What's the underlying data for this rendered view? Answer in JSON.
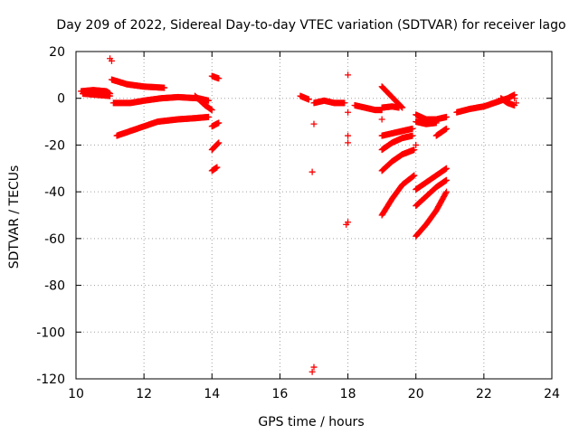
{
  "chart_data": {
    "type": "scatter",
    "title": "Day 209 of 2022, Sidereal Day-to-day VTEC variation (SDTVAR) for receiver lago",
    "xlabel": "GPS time / hours",
    "ylabel": "SDTVAR / TECUs",
    "xlim": [
      10,
      24
    ],
    "ylim": [
      -120,
      20
    ],
    "xticks": [
      10,
      12,
      14,
      16,
      18,
      20,
      22,
      24
    ],
    "yticks": [
      20,
      0,
      -20,
      -40,
      -60,
      -80,
      -100,
      -120
    ],
    "grid": true,
    "marker": "+",
    "color": "#ff0000",
    "tracks": [
      [
        [
          10.15,
          3
        ],
        [
          10.5,
          3.5
        ],
        [
          10.9,
          3
        ],
        [
          11.0,
          2
        ]
      ],
      [
        [
          10.2,
          2
        ],
        [
          10.6,
          1.5
        ],
        [
          11.0,
          1
        ]
      ],
      [
        [
          11.05,
          8
        ],
        [
          11.5,
          6
        ],
        [
          12.0,
          5
        ],
        [
          12.6,
          4.5
        ]
      ],
      [
        [
          11.1,
          -2
        ],
        [
          11.6,
          -2
        ],
        [
          12.0,
          -1
        ],
        [
          12.5,
          0
        ],
        [
          13.0,
          0.5
        ],
        [
          13.6,
          0
        ],
        [
          13.9,
          -1
        ]
      ],
      [
        [
          11.2,
          -16
        ],
        [
          11.6,
          -14
        ],
        [
          12.0,
          -12
        ],
        [
          12.4,
          -10
        ],
        [
          13.0,
          -9
        ],
        [
          13.5,
          -8.5
        ],
        [
          13.9,
          -8
        ]
      ],
      [
        [
          13.5,
          1
        ],
        [
          13.8,
          -3
        ],
        [
          14.0,
          -5
        ]
      ],
      [
        [
          14.0,
          9.5
        ],
        [
          14.2,
          8.5
        ]
      ],
      [
        [
          14.0,
          -12
        ],
        [
          14.2,
          -10.5
        ]
      ],
      [
        [
          14.0,
          -22
        ],
        [
          14.2,
          -19
        ]
      ],
      [
        [
          14.0,
          -31
        ],
        [
          14.15,
          -29.5
        ]
      ],
      [
        [
          16.6,
          1
        ],
        [
          16.85,
          -0.5
        ]
      ],
      [
        [
          17.0,
          -2
        ],
        [
          17.3,
          -1
        ],
        [
          17.6,
          -2
        ],
        [
          17.9,
          -2
        ]
      ],
      [
        [
          18.2,
          -3
        ],
        [
          18.5,
          -4
        ],
        [
          18.8,
          -5
        ],
        [
          19.0,
          -5
        ]
      ],
      [
        [
          19.0,
          5
        ],
        [
          19.2,
          2
        ],
        [
          19.4,
          -1
        ],
        [
          19.6,
          -4
        ]
      ],
      [
        [
          19.0,
          -4
        ],
        [
          19.3,
          -3.5
        ],
        [
          19.5,
          -4
        ]
      ],
      [
        [
          19.0,
          -16
        ],
        [
          19.3,
          -15
        ],
        [
          19.6,
          -14
        ],
        [
          19.9,
          -13
        ]
      ],
      [
        [
          19.0,
          -22
        ],
        [
          19.3,
          -19
        ],
        [
          19.6,
          -17
        ],
        [
          19.9,
          -16
        ]
      ],
      [
        [
          19.0,
          -31
        ],
        [
          19.3,
          -27
        ],
        [
          19.6,
          -24
        ],
        [
          19.95,
          -22
        ]
      ],
      [
        [
          19.0,
          -50
        ],
        [
          19.3,
          -43
        ],
        [
          19.6,
          -37
        ],
        [
          19.95,
          -33
        ]
      ],
      [
        [
          20.0,
          -7
        ],
        [
          20.3,
          -9
        ],
        [
          20.6,
          -9
        ],
        [
          20.9,
          -8
        ]
      ],
      [
        [
          20.0,
          -10
        ],
        [
          20.3,
          -11
        ],
        [
          20.6,
          -10.5
        ]
      ],
      [
        [
          20.0,
          -39
        ],
        [
          20.3,
          -36
        ],
        [
          20.6,
          -33
        ],
        [
          20.9,
          -30
        ]
      ],
      [
        [
          20.0,
          -46
        ],
        [
          20.3,
          -42
        ],
        [
          20.6,
          -38
        ],
        [
          20.9,
          -35
        ]
      ],
      [
        [
          20.0,
          -59
        ],
        [
          20.3,
          -54
        ],
        [
          20.6,
          -48
        ],
        [
          20.9,
          -40
        ]
      ],
      [
        [
          20.6,
          -16
        ],
        [
          20.9,
          -13
        ]
      ],
      [
        [
          21.2,
          -6
        ],
        [
          21.6,
          -4.5
        ],
        [
          22.0,
          -3.5
        ],
        [
          22.1,
          -3
        ]
      ],
      [
        [
          22.1,
          -3
        ],
        [
          22.4,
          -1.5
        ],
        [
          22.7,
          0
        ],
        [
          22.9,
          1.5
        ]
      ],
      [
        [
          22.5,
          0
        ],
        [
          22.7,
          -2
        ],
        [
          22.9,
          -3
        ]
      ]
    ],
    "points": [
      [
        11.0,
        17
      ],
      [
        11.05,
        16
      ],
      [
        17.0,
        -11
      ],
      [
        16.95,
        -31.5
      ],
      [
        17.0,
        -115
      ],
      [
        16.95,
        -117
      ],
      [
        18.0,
        10
      ],
      [
        18.0,
        -6
      ],
      [
        18.0,
        -16
      ],
      [
        18.0,
        -19
      ],
      [
        18.0,
        -53
      ],
      [
        17.95,
        -54
      ],
      [
        19.0,
        -9
      ],
      [
        20.0,
        -20
      ],
      [
        22.9,
        0
      ],
      [
        22.95,
        -2
      ]
    ]
  }
}
